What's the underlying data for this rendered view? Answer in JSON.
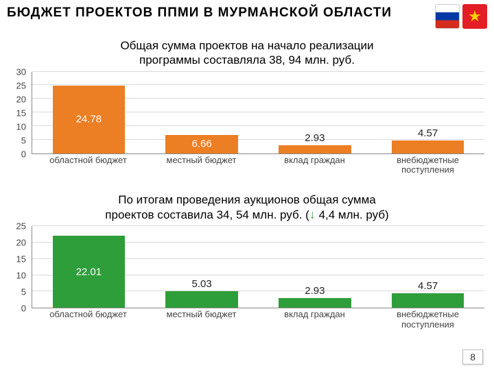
{
  "header": {
    "title": "БЮДЖЕТ  ПРОЕКТОВ  ППМИ  В МУРМАНСКОЙ ОБЛАСТИ"
  },
  "chart1": {
    "type": "bar",
    "caption_line1": "Общая сумма проектов на начало реализации",
    "caption_line2": "программы составляла 38, 94 млн. руб.",
    "title_fontsize": 17,
    "ylim": [
      0,
      30
    ],
    "ytick_step": 5,
    "yticks": [
      0,
      5,
      10,
      15,
      20,
      25,
      30
    ],
    "categories": [
      "областной бюджет",
      "местный бюджет",
      "вклад граждан",
      "внебюджетные поступления"
    ],
    "values": [
      24.78,
      6.66,
      2.93,
      4.57
    ],
    "value_labels": [
      "24.78",
      "6.66",
      "2.93",
      "4.57"
    ],
    "bar_colors": [
      "#ec7e23",
      "#ec7e23",
      "#ec7e23",
      "#ec7e23"
    ],
    "grid_color": "#d9d9d9",
    "background_color": "#ffffff",
    "label_fontsize": 13,
    "bar_width": 0.64
  },
  "chart2": {
    "type": "bar",
    "caption_line1": "По итогам проведения аукционов общая сумма",
    "caption_line2_a": "проектов составила 34, 54 млн. руб. (",
    "caption_line2_arrow": "↓",
    "caption_line2_b": " 4,4 млн. руб)",
    "title_fontsize": 17,
    "ylim": [
      0,
      25
    ],
    "ytick_step": 5,
    "yticks": [
      0,
      5,
      10,
      15,
      20,
      25
    ],
    "categories": [
      "областной бюджет",
      "местный бюджет",
      "вклад граждан",
      "внебюджетные поступления"
    ],
    "values": [
      22.01,
      5.03,
      2.93,
      4.57
    ],
    "value_labels": [
      "22.01",
      "5.03",
      "2.93",
      "4.57"
    ],
    "bar_colors": [
      "#2e9e3a",
      "#2e9e3a",
      "#2e9e3a",
      "#2e9e3a"
    ],
    "grid_color": "#d9d9d9",
    "background_color": "#ffffff",
    "label_fontsize": 13,
    "bar_width": 0.64
  },
  "footer": {
    "page": "8"
  }
}
